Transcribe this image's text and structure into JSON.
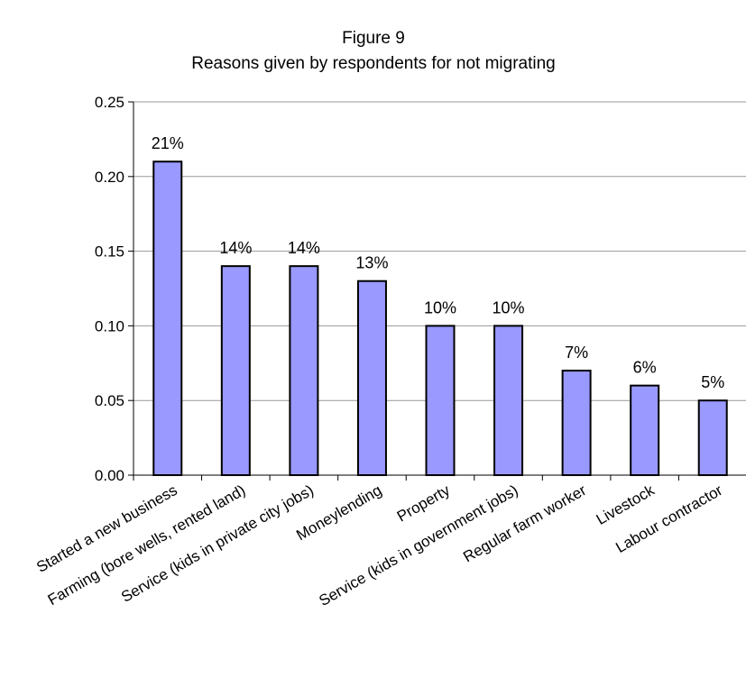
{
  "chart_data": {
    "type": "bar",
    "title": "Figure 9",
    "subtitle": "Reasons given by respondents for not migrating",
    "categories": [
      "Started a new business",
      "Farming (bore wells, rented land)",
      "Service (kids in private city jobs)",
      "Moneylending",
      "Property",
      "Service (kids in government jobs)",
      "Regular farm worker",
      "Livestock",
      "Labour contractor"
    ],
    "values": [
      0.21,
      0.14,
      0.14,
      0.13,
      0.1,
      0.1,
      0.07,
      0.06,
      0.05
    ],
    "data_labels": [
      "21%",
      "14%",
      "14%",
      "13%",
      "10%",
      "10%",
      "7%",
      "6%",
      "5%"
    ],
    "ylim": [
      0,
      0.25
    ],
    "yticks": [
      "0.00",
      "0.05",
      "0.10",
      "0.15",
      "0.20",
      "0.25"
    ],
    "grid": true,
    "legend": "none",
    "colors": {
      "bar_fill": "#9999ff",
      "bar_stroke": "#000000",
      "grid": "#999999"
    }
  }
}
